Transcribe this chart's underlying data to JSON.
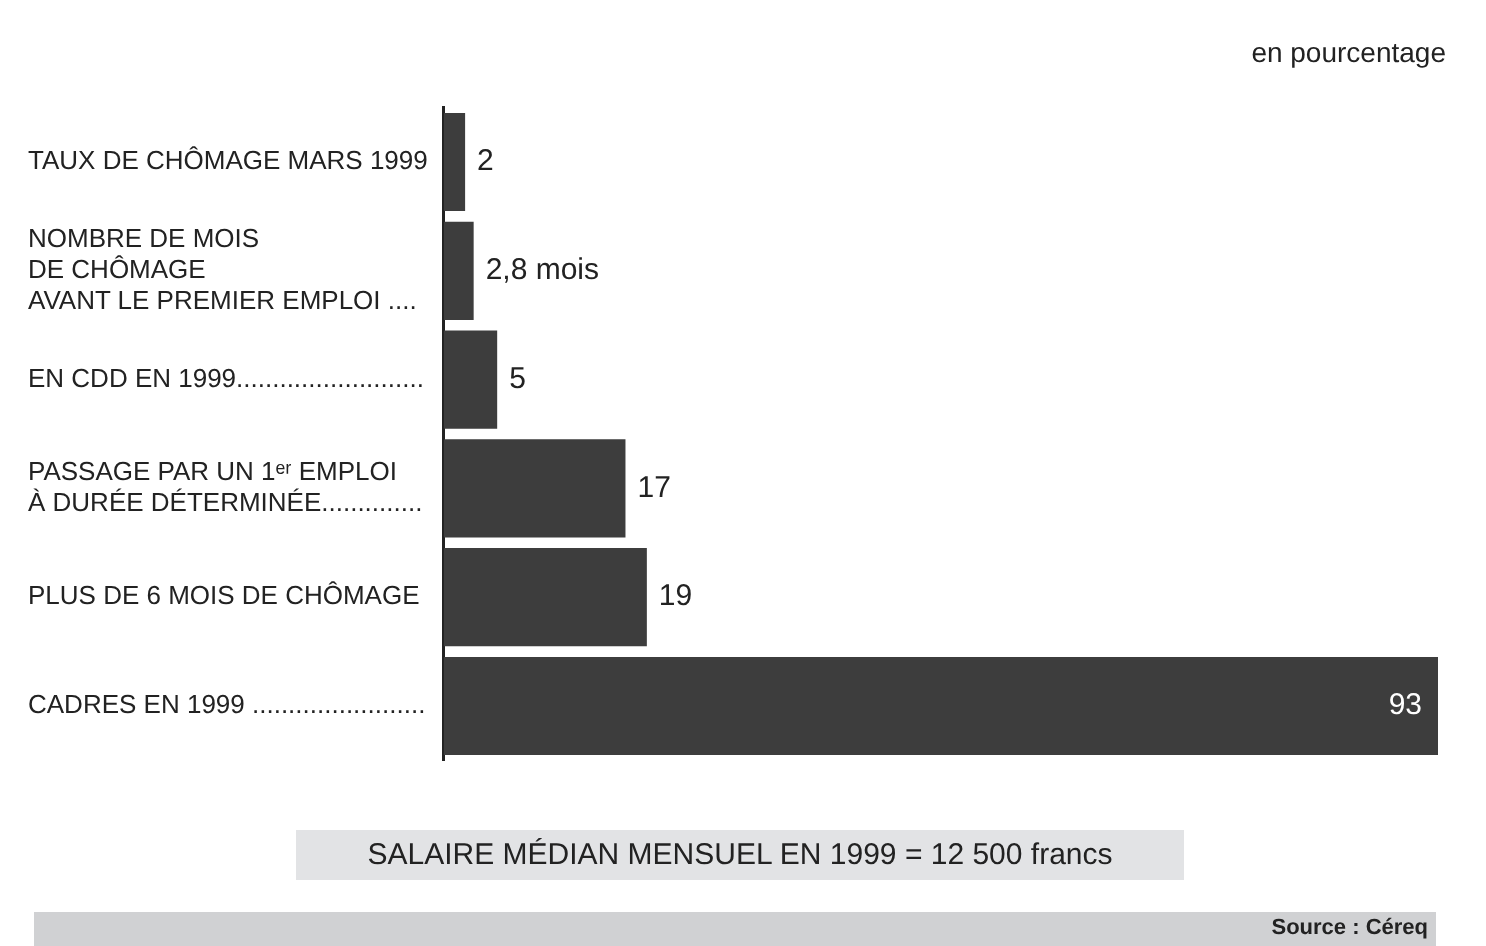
{
  "chart_data": {
    "type": "bar",
    "orientation": "horizontal",
    "categories": [
      "TAUX DE CHÔMAGE MARS 1999",
      "NOMBRE DE MOIS\nDE CHÔMAGE\nAVANT LE PREMIER EMPLOI ....",
      "EN CDD EN 1999..........................",
      "PASSAGE PAR UN 1ᵉʳ EMPLOI\nÀ DURÉE DÉTERMINÉE..............",
      "PLUS DE 6 MOIS DE CHÔMAGE",
      "CADRES EN 1999 ........................"
    ],
    "values": [
      2,
      2.8,
      5,
      17,
      19,
      93
    ],
    "value_labels": [
      "2",
      "2,8 mois",
      "5",
      "17",
      "19",
      "93"
    ],
    "color": "#3d3d3d",
    "xlim": [
      0,
      93
    ],
    "legend": false,
    "annotations": [
      "en pourcentage",
      "SALAIRE MÉDIAN MENSUEL EN 1999 = 12 500 francs",
      "Source : Céreq"
    ]
  }
}
